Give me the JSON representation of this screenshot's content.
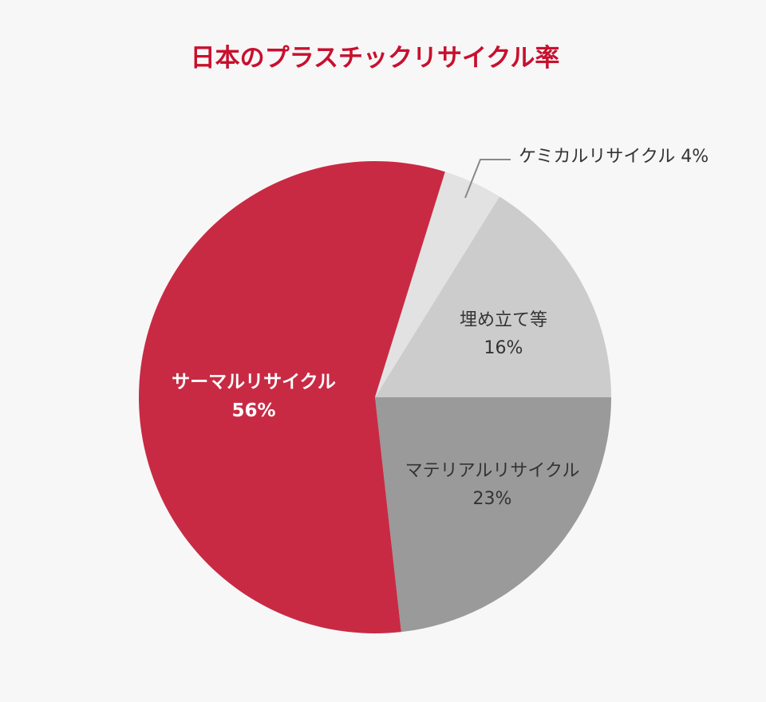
{
  "chart_data": {
    "type": "pie",
    "title": "日本のプラスチックリサイクル率",
    "slices": [
      {
        "label": "マテリアルリサイクル",
        "value": 23,
        "value_label": "23%",
        "color": "#9a9a9a"
      },
      {
        "label": "サーマルリサイクル",
        "value": 56,
        "value_label": "56%",
        "color": "#c82a44"
      },
      {
        "label": "ケミカルリサイクル",
        "value": 4,
        "value_label": "4%",
        "color": "#e2e2e2"
      },
      {
        "label": "埋め立て等",
        "value": 16,
        "value_label": "16%",
        "color": "#cccccc"
      }
    ],
    "title_color": "#c8102e"
  }
}
